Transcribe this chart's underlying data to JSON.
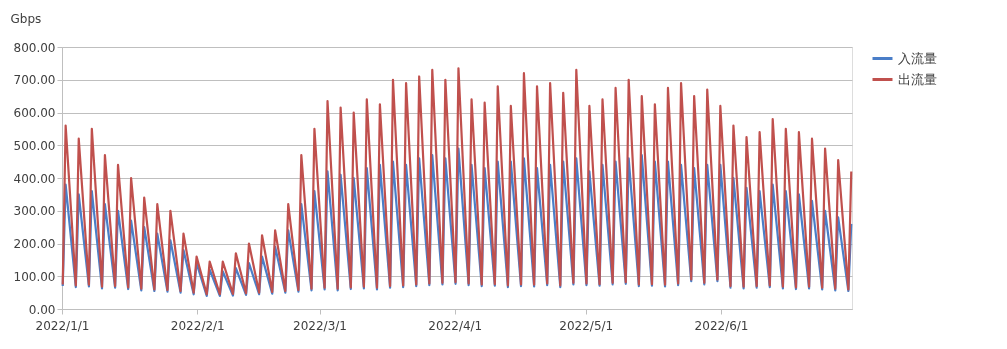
{
  "chart_data": {
    "type": "line",
    "ylabel": "Gbps",
    "x": [
      "2022-01-01T04:00",
      "2022-01-01T20:00",
      "2022-01-04T04:00",
      "2022-01-04T20:00",
      "2022-01-07T04:00",
      "2022-01-07T20:00",
      "2022-01-10T04:00",
      "2022-01-10T20:00",
      "2022-01-13T04:00",
      "2022-01-13T20:00",
      "2022-01-16T04:00",
      "2022-01-16T20:00",
      "2022-01-19T04:00",
      "2022-01-19T20:00",
      "2022-01-22T04:00",
      "2022-01-22T20:00",
      "2022-01-25T04:00",
      "2022-01-25T20:00",
      "2022-01-28T04:00",
      "2022-01-28T20:00",
      "2022-01-31T04:00",
      "2022-01-31T20:00",
      "2022-02-03T04:00",
      "2022-02-03T20:00",
      "2022-02-06T04:00",
      "2022-02-06T20:00",
      "2022-02-09T04:00",
      "2022-02-09T20:00",
      "2022-02-12T04:00",
      "2022-02-12T20:00",
      "2022-02-15T04:00",
      "2022-02-15T20:00",
      "2022-02-18T04:00",
      "2022-02-18T20:00",
      "2022-02-21T04:00",
      "2022-02-21T20:00",
      "2022-02-24T04:00",
      "2022-02-24T20:00",
      "2022-02-27T04:00",
      "2022-02-27T20:00",
      "2022-03-02T04:00",
      "2022-03-02T20:00",
      "2022-03-05T04:00",
      "2022-03-05T20:00",
      "2022-03-08T04:00",
      "2022-03-08T20:00",
      "2022-03-11T04:00",
      "2022-03-11T20:00",
      "2022-03-14T04:00",
      "2022-03-14T20:00",
      "2022-03-17T04:00",
      "2022-03-17T20:00",
      "2022-03-20T04:00",
      "2022-03-20T20:00",
      "2022-03-23T04:00",
      "2022-03-23T20:00",
      "2022-03-26T04:00",
      "2022-03-26T20:00",
      "2022-03-29T04:00",
      "2022-03-29T20:00",
      "2022-04-01T04:00",
      "2022-04-01T20:00",
      "2022-04-04T04:00",
      "2022-04-04T20:00",
      "2022-04-07T04:00",
      "2022-04-07T20:00",
      "2022-04-10T04:00",
      "2022-04-10T20:00",
      "2022-04-13T04:00",
      "2022-04-13T20:00",
      "2022-04-16T04:00",
      "2022-04-16T20:00",
      "2022-04-19T04:00",
      "2022-04-19T20:00",
      "2022-04-22T04:00",
      "2022-04-22T20:00",
      "2022-04-25T04:00",
      "2022-04-25T20:00",
      "2022-04-28T04:00",
      "2022-04-28T20:00",
      "2022-05-01T04:00",
      "2022-05-01T20:00",
      "2022-05-04T04:00",
      "2022-05-04T20:00",
      "2022-05-07T04:00",
      "2022-05-07T20:00",
      "2022-05-10T04:00",
      "2022-05-10T20:00",
      "2022-05-13T04:00",
      "2022-05-13T20:00",
      "2022-05-16T04:00",
      "2022-05-16T20:00",
      "2022-05-19T04:00",
      "2022-05-19T20:00",
      "2022-05-22T04:00",
      "2022-05-22T20:00",
      "2022-05-25T04:00",
      "2022-05-25T20:00",
      "2022-05-28T04:00",
      "2022-05-28T20:00",
      "2022-05-31T04:00",
      "2022-05-31T20:00",
      "2022-06-03T04:00",
      "2022-06-03T20:00",
      "2022-06-06T04:00",
      "2022-06-06T20:00",
      "2022-06-09T04:00",
      "2022-06-09T20:00",
      "2022-06-12T04:00",
      "2022-06-12T20:00",
      "2022-06-15T04:00",
      "2022-06-15T20:00",
      "2022-06-18T04:00",
      "2022-06-18T20:00",
      "2022-06-21T04:00",
      "2022-06-21T20:00",
      "2022-06-24T04:00",
      "2022-06-24T20:00",
      "2022-06-27T04:00",
      "2022-06-27T20:00",
      "2022-06-30T04:00",
      "2022-06-30T20:00"
    ],
    "series": [
      {
        "name": "入流量",
        "color": "#4a7ec8",
        "values": [
          70,
          380,
          67,
          350,
          69,
          360,
          63,
          320,
          65,
          300,
          61,
          270,
          57,
          250,
          55,
          230,
          53,
          210,
          50,
          180,
          45,
          140,
          40,
          120,
          40,
          115,
          41,
          125,
          43,
          140,
          45,
          160,
          47,
          190,
          50,
          240,
          53,
          320,
          57,
          360,
          60,
          420,
          57,
          410,
          61,
          400,
          63,
          430,
          60,
          440,
          65,
          450,
          67,
          440,
          70,
          460,
          73,
          470,
          75,
          460,
          77,
          490,
          73,
          440,
          70,
          430,
          71,
          450,
          67,
          450,
          70,
          460,
          69,
          430,
          73,
          440,
          67,
          450,
          75,
          460,
          73,
          420,
          71,
          440,
          75,
          450,
          77,
          460,
          70,
          470,
          71,
          450,
          69,
          450,
          73,
          440,
          85,
          430,
          75,
          440,
          85,
          440,
          65,
          400,
          63,
          370,
          65,
          360,
          67,
          380,
          63,
          360,
          61,
          350,
          63,
          330,
          60,
          300,
          57,
          280,
          55,
          260
        ]
      },
      {
        "name": "出流量",
        "color": "#c0504d",
        "values": [
          75,
          560,
          72,
          520,
          74,
          550,
          68,
          470,
          70,
          440,
          66,
          400,
          62,
          340,
          60,
          320,
          58,
          300,
          55,
          230,
          50,
          160,
          45,
          145,
          45,
          145,
          46,
          170,
          48,
          200,
          50,
          225,
          52,
          240,
          55,
          320,
          58,
          470,
          62,
          550,
          65,
          635,
          62,
          615,
          66,
          600,
          68,
          640,
          65,
          625,
          70,
          700,
          72,
          690,
          75,
          710,
          78,
          730,
          80,
          700,
          82,
          735,
          78,
          640,
          75,
          630,
          76,
          680,
          72,
          620,
          75,
          720,
          74,
          680,
          78,
          690,
          72,
          660,
          80,
          730,
          78,
          620,
          76,
          640,
          80,
          675,
          82,
          700,
          75,
          650,
          76,
          625,
          74,
          675,
          78,
          690,
          90,
          650,
          80,
          670,
          90,
          620,
          70,
          560,
          68,
          525,
          70,
          540,
          72,
          580,
          68,
          550,
          66,
          540,
          68,
          520,
          65,
          490,
          62,
          455,
          60,
          420
        ]
      }
    ],
    "xlim": [
      "2022-01-01",
      "2022-07-01"
    ],
    "xticks": [
      {
        "value": "2022-01-01",
        "label": "2022/1/1"
      },
      {
        "value": "2022-02-01",
        "label": "2022/2/1"
      },
      {
        "value": "2022-03-01",
        "label": "2022/3/1"
      },
      {
        "value": "2022-04-01",
        "label": "2022/4/1"
      },
      {
        "value": "2022-05-01",
        "label": "2022/5/1"
      },
      {
        "value": "2022-06-01",
        "label": "2022/6/1"
      }
    ],
    "ylim": [
      0,
      800
    ],
    "yticks": [
      {
        "value": 0,
        "label": "0.00"
      },
      {
        "value": 100,
        "label": "100.00"
      },
      {
        "value": 200,
        "label": "200.00"
      },
      {
        "value": 300,
        "label": "300.00"
      },
      {
        "value": 400,
        "label": "400.00"
      },
      {
        "value": 500,
        "label": "500.00"
      },
      {
        "value": 600,
        "label": "600.00"
      },
      {
        "value": 700,
        "label": "700.00"
      },
      {
        "value": 800,
        "label": "800.00"
      }
    ],
    "grid": "y",
    "legend": "right",
    "line_style": "solid"
  }
}
